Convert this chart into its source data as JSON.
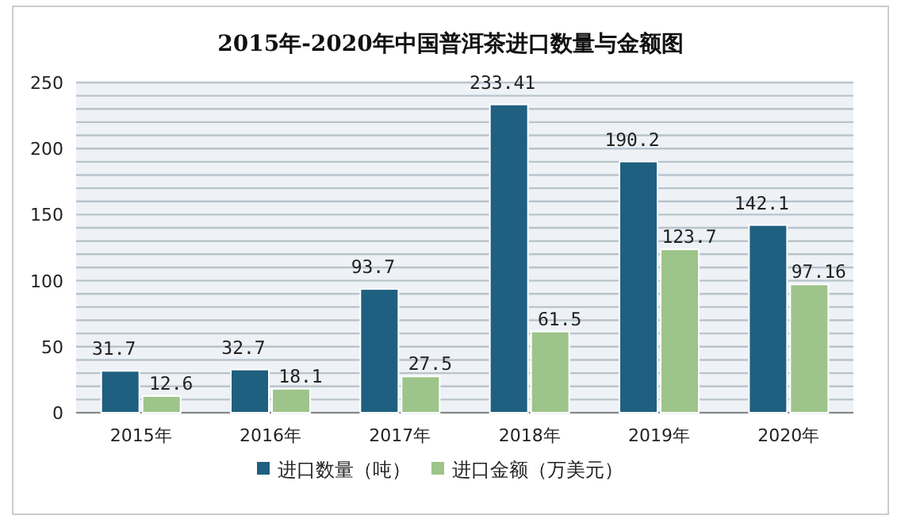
{
  "chart_data": {
    "type": "bar",
    "title": "2015年-2020年中国普洱茶进口数量与金额图",
    "categories": [
      "2015年",
      "2016年",
      "2017年",
      "2018年",
      "2019年",
      "2020年"
    ],
    "series": [
      {
        "name": "进口数量（吨）",
        "color": "#1f5f80",
        "values": [
          31.7,
          32.7,
          93.7,
          233.41,
          190.2,
          142.1
        ]
      },
      {
        "name": "进口金额（万美元）",
        "color": "#9dc48a",
        "values": [
          12.6,
          18.1,
          27.5,
          61.5,
          123.7,
          97.16
        ]
      }
    ],
    "ylim": [
      0,
      250
    ],
    "yticks": [
      0,
      {
        "value": 10,
        "label": null
      },
      {
        "value": 20,
        "label": null
      },
      {
        "value": 30,
        "label": null
      },
      {
        "value": 40,
        "label": null
      },
      50,
      {
        "value": 60,
        "label": null
      },
      {
        "value": 70,
        "label": null
      },
      {
        "value": 80,
        "label": null
      },
      {
        "value": 90,
        "label": null
      },
      100,
      {
        "value": 110,
        "label": null
      },
      {
        "value": 120,
        "label": null
      },
      {
        "value": 130,
        "label": null
      },
      {
        "value": 140,
        "label": null
      },
      150,
      {
        "value": 160,
        "label": null
      },
      {
        "value": 170,
        "label": null
      },
      {
        "value": 180,
        "label": null
      },
      {
        "value": 190,
        "label": null
      },
      200,
      {
        "value": 210,
        "label": null
      },
      {
        "value": 220,
        "label": null
      },
      {
        "value": 230,
        "label": null
      },
      {
        "value": 240,
        "label": null
      },
      250
    ],
    "grid": "y",
    "legend": "bottom",
    "data_labels": true
  }
}
